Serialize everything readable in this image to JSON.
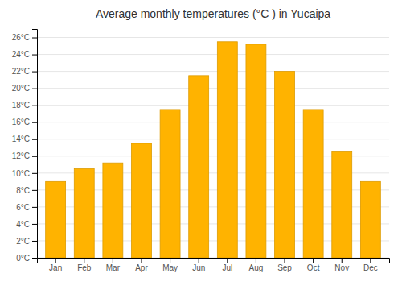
{
  "chart_data": {
    "type": "bar",
    "title": "Average monthly temperatures (°C ) in Yucaipa",
    "categories": [
      "Jan",
      "Feb",
      "Mar",
      "Apr",
      "May",
      "Jun",
      "Jul",
      "Aug",
      "Sep",
      "Oct",
      "Nov",
      "Dec"
    ],
    "values": [
      9.0,
      10.5,
      11.2,
      13.5,
      17.5,
      21.5,
      25.5,
      25.2,
      22.0,
      17.5,
      12.5,
      9.0
    ],
    "color": "#FFB300",
    "ylim": [
      0,
      27
    ],
    "yticks": [
      {
        "value": 0,
        "label": "0°C"
      },
      {
        "value": 2,
        "label": "2°C"
      },
      {
        "value": 4,
        "label": "4°C"
      },
      {
        "value": 6,
        "label": "6°C"
      },
      {
        "value": 8,
        "label": "8°C"
      },
      {
        "value": 10,
        "label": "10°C"
      },
      {
        "value": 12,
        "label": "12°C"
      },
      {
        "value": 14,
        "label": "14°C"
      },
      {
        "value": 16,
        "label": "16°C"
      },
      {
        "value": 18,
        "label": "18°C"
      },
      {
        "value": 20,
        "label": "20°C"
      },
      {
        "value": 22,
        "label": "22°C"
      },
      {
        "value": 24,
        "label": "24°C"
      },
      {
        "value": 26,
        "label": "26°C"
      }
    ],
    "grid": true
  }
}
